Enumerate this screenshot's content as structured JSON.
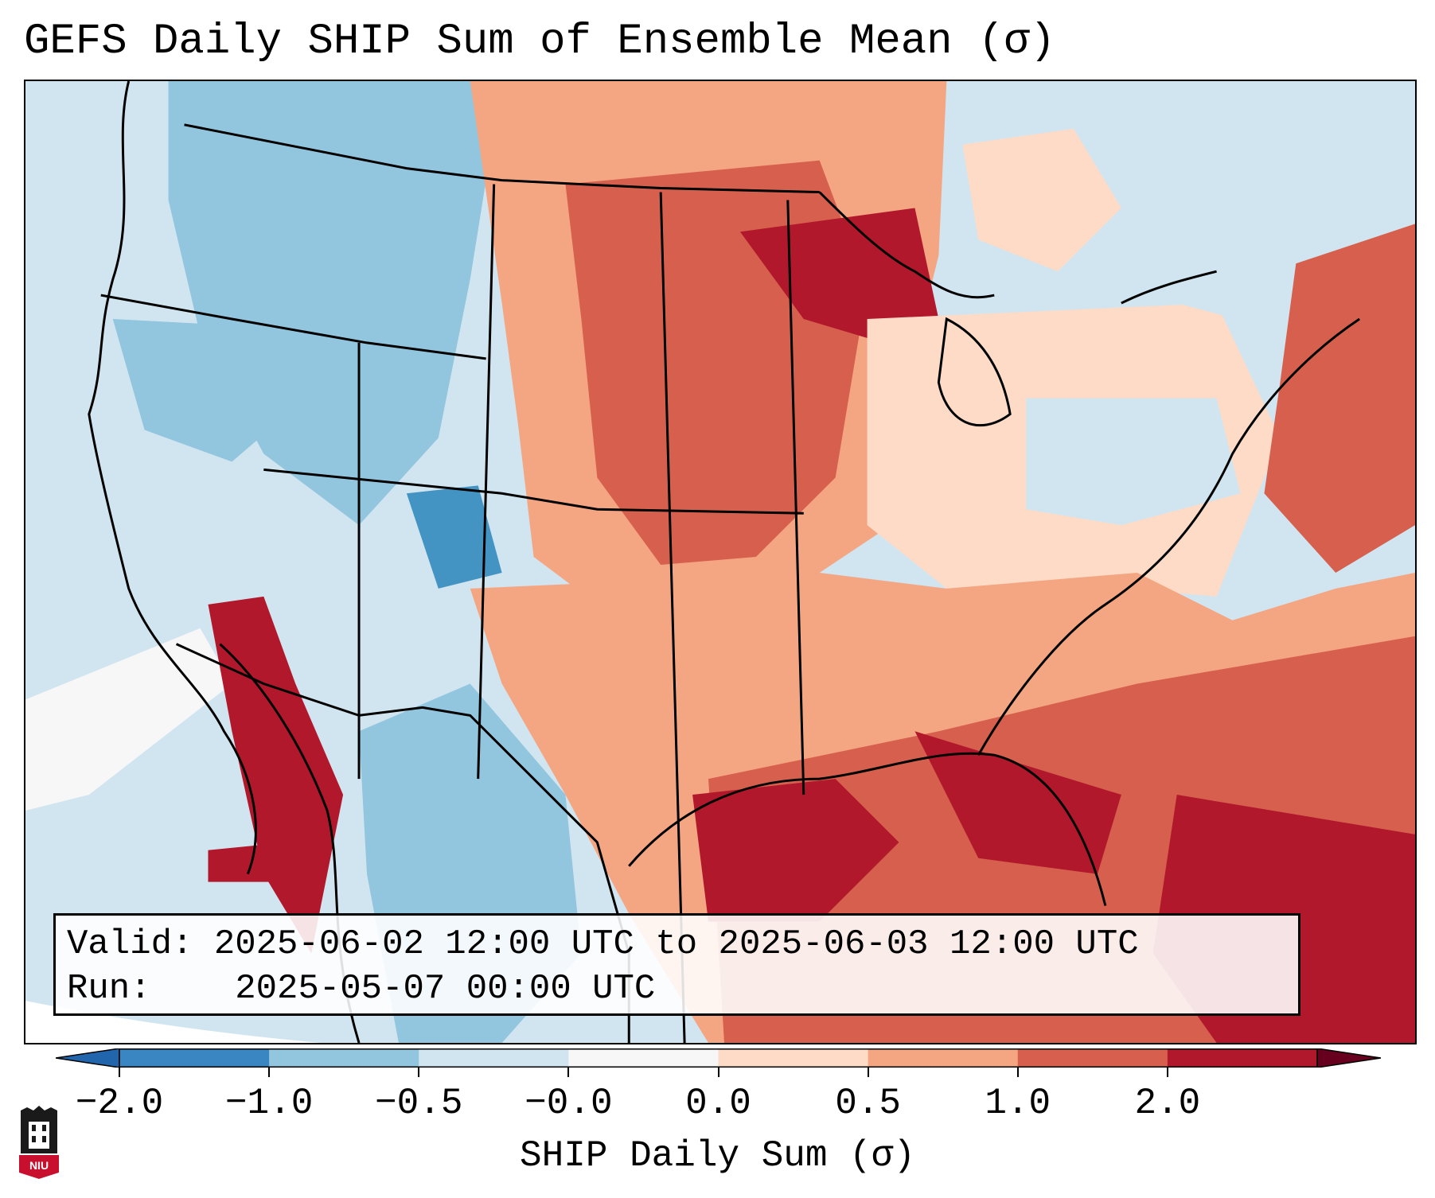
{
  "title": "GEFS Daily SHIP Sum of Ensemble Mean (σ)",
  "info": {
    "valid_label": "Valid:",
    "valid_value": "2025-06-02 12:00 UTC to 2025-06-03 12:00 UTC",
    "run_label": "Run:",
    "run_value": "2025-05-07 00:00 UTC"
  },
  "colorbar": {
    "label": "SHIP Daily Sum (σ)",
    "ticks": [
      "−2.0",
      "−1.0",
      "−0.5",
      "−0.0",
      "0.0",
      "0.5",
      "1.0",
      "2.0"
    ],
    "colors": [
      "#3a86c2",
      "#92c5de",
      "#d1e5f0",
      "#f7f7f7",
      "#fddbc7",
      "#f4a582",
      "#d6604d",
      "#b2182b"
    ],
    "under_color": "#2166ac",
    "over_color": "#67001f"
  },
  "legend_colors": {
    "strong_negative": "#4393c3",
    "moderate_negative": "#92c5de",
    "weak_negative": "#d1e5f0",
    "neutral": "#f7f7f7",
    "weak_positive": "#fddbc7",
    "moderate_positive": "#f4a582",
    "strong_positive": "#d6604d",
    "extreme_positive": "#b2182b"
  },
  "logo": {
    "text": "NIU",
    "name": "niu-logo"
  }
}
